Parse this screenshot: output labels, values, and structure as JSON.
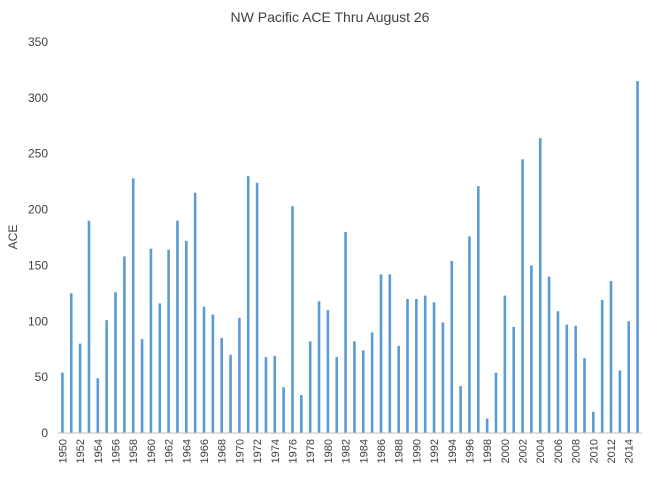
{
  "chart_data": {
    "type": "bar",
    "title": "NW Pacific ACE Thru August 26",
    "xlabel": "",
    "ylabel": "ACE",
    "ylim": [
      0,
      350
    ],
    "yticks": [
      "0",
      "50",
      "100",
      "150",
      "200",
      "250",
      "300",
      "350"
    ],
    "grid": false,
    "legend": "none",
    "bar_color": "#5B9BD5",
    "categories": [
      "1950",
      "1951",
      "1952",
      "1953",
      "1954",
      "1955",
      "1956",
      "1957",
      "1958",
      "1959",
      "1960",
      "1961",
      "1962",
      "1963",
      "1964",
      "1965",
      "1966",
      "1967",
      "1968",
      "1969",
      "1970",
      "1971",
      "1972",
      "1973",
      "1974",
      "1975",
      "1976",
      "1977",
      "1978",
      "1979",
      "1980",
      "1981",
      "1982",
      "1983",
      "1984",
      "1985",
      "1986",
      "1987",
      "1988",
      "1989",
      "1990",
      "1991",
      "1992",
      "1993",
      "1994",
      "1995",
      "1996",
      "1997",
      "1998",
      "1999",
      "2000",
      "2001",
      "2002",
      "2003",
      "2004",
      "2005",
      "2006",
      "2007",
      "2008",
      "2009",
      "2010",
      "2011",
      "2012",
      "2013",
      "2014",
      "2015"
    ],
    "xtick_labels": [
      "1950",
      "1952",
      "1954",
      "1956",
      "1958",
      "1960",
      "1962",
      "1964",
      "1966",
      "1968",
      "1970",
      "1972",
      "1974",
      "1976",
      "1978",
      "1980",
      "1982",
      "1984",
      "1986",
      "1988",
      "1990",
      "1992",
      "1994",
      "1996",
      "1998",
      "2000",
      "2002",
      "2004",
      "2006",
      "2008",
      "2010",
      "2012",
      "2014"
    ],
    "values": [
      54,
      125,
      80,
      190,
      49,
      101,
      126,
      158,
      228,
      84,
      165,
      116,
      164,
      190,
      172,
      215,
      113,
      106,
      85,
      70,
      103,
      230,
      224,
      68,
      69,
      41,
      203,
      34,
      82,
      118,
      110,
      68,
      180,
      82,
      74,
      90,
      142,
      142,
      78,
      120,
      120,
      123,
      117,
      99,
      154,
      42,
      176,
      221,
      13,
      54,
      123,
      95,
      245,
      150,
      264,
      140,
      109,
      97,
      96,
      67,
      19,
      119,
      136,
      56,
      100,
      315
    ]
  }
}
